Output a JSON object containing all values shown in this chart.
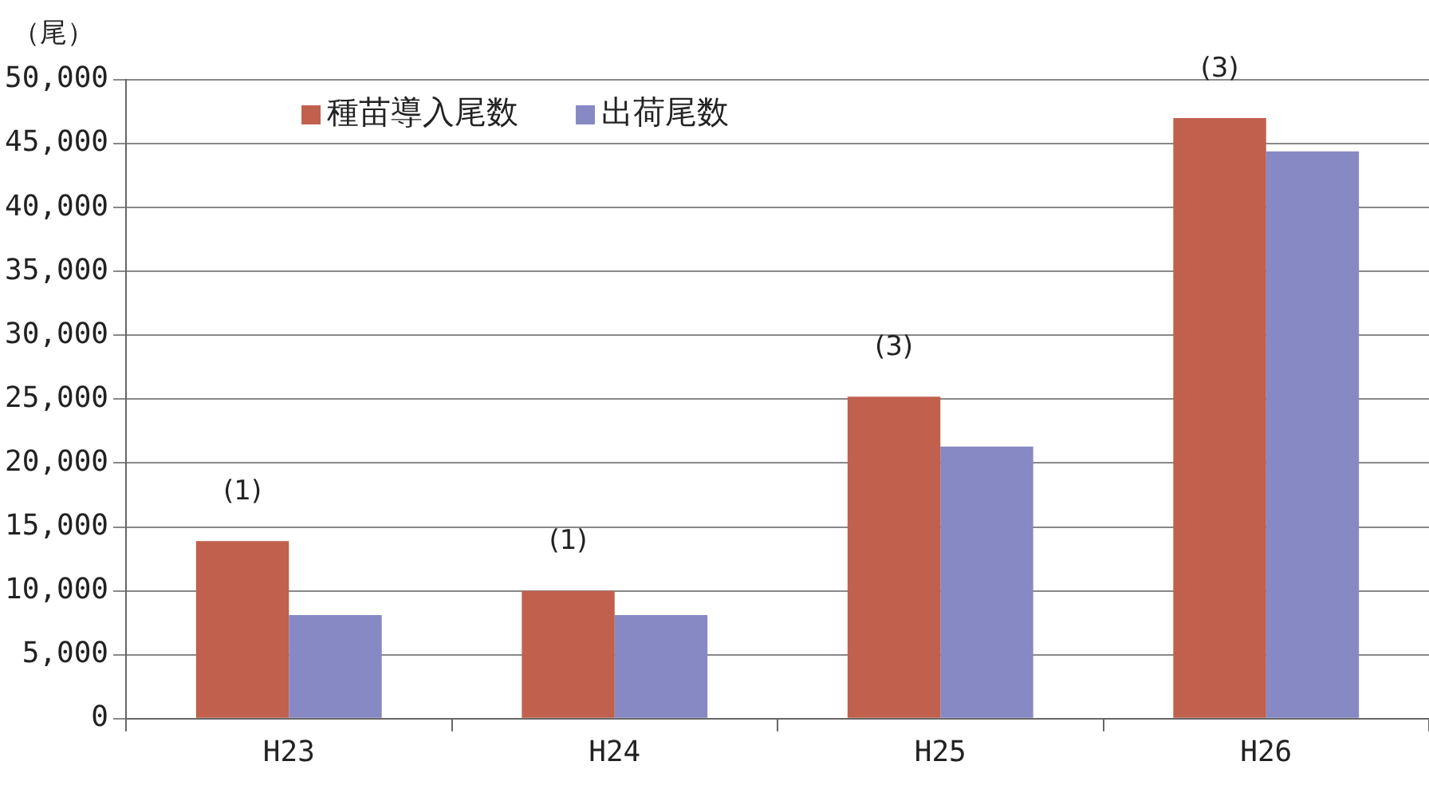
{
  "chart_data": {
    "type": "bar",
    "ylabel": "（尾）",
    "categories": [
      "H23",
      "H24",
      "H25",
      "H26"
    ],
    "series": [
      {
        "name": "種苗導入尾数",
        "color": "#c0604d",
        "values": [
          13900,
          10000,
          25200,
          47000
        ]
      },
      {
        "name": "出荷尾数",
        "color": "#8789c4",
        "values": [
          8100,
          8100,
          21300,
          44400
        ]
      }
    ],
    "ylim": [
      0,
      50000
    ],
    "yticks": [
      {
        "value": 0,
        "label": "0"
      },
      {
        "value": 5000,
        "label": "5,000"
      },
      {
        "value": 10000,
        "label": "10,000"
      },
      {
        "value": 15000,
        "label": "15,000"
      },
      {
        "value": 20000,
        "label": "20,000"
      },
      {
        "value": 25000,
        "label": "25,000"
      },
      {
        "value": 30000,
        "label": "30,000"
      },
      {
        "value": 35000,
        "label": "35,000"
      },
      {
        "value": 40000,
        "label": "40,000"
      },
      {
        "value": 45000,
        "label": "45,000"
      },
      {
        "value": 50000,
        "label": "50,000"
      }
    ],
    "annotations": [
      {
        "text": "(1)",
        "x": "H23",
        "y": 13900
      },
      {
        "text": "(1)",
        "x": "H24",
        "y": 10000
      },
      {
        "text": "(3)",
        "x": "H25",
        "y": 25200
      },
      {
        "text": "(3)",
        "x": "H26",
        "y": 47000
      }
    ],
    "grid": "y",
    "legend": "top"
  }
}
